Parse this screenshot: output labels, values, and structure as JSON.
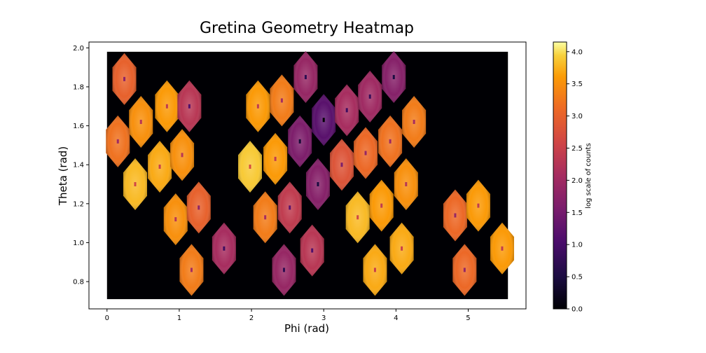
{
  "chart_data": {
    "type": "heatmap",
    "title": "Gretina Geometry Heatmap",
    "xlabel": "Phi (rad)",
    "ylabel": "Theta (rad)",
    "xlim": [
      -0.25,
      5.8
    ],
    "ylim": [
      0.66,
      2.03
    ],
    "xticks": [
      0,
      1,
      2,
      3,
      4,
      5
    ],
    "yticks": [
      0.8,
      1.0,
      1.2,
      1.4,
      1.6,
      1.8,
      2.0
    ],
    "data_extent": {
      "phi": [
        0.0,
        5.55
      ],
      "theta": [
        0.71,
        1.98
      ]
    },
    "background_value": 0.0,
    "colormap": "inferno",
    "colorbar": {
      "label": "log scale of counts",
      "range": [
        0.0,
        4.15
      ],
      "ticks": [
        0.0,
        0.5,
        1.0,
        1.5,
        2.0,
        2.5,
        3.0,
        3.5,
        4.0
      ]
    },
    "grid": false,
    "legend": "none",
    "crystals": [
      {
        "phi": 0.24,
        "theta": 1.84,
        "value": 3.0
      },
      {
        "phi": 0.47,
        "theta": 1.62,
        "value": 3.5
      },
      {
        "phi": 0.15,
        "theta": 1.52,
        "value": 3.2
      },
      {
        "phi": 0.39,
        "theta": 1.3,
        "value": 3.8
      },
      {
        "phi": 0.83,
        "theta": 1.7,
        "value": 3.6
      },
      {
        "phi": 1.14,
        "theta": 1.7,
        "value": 2.3
      },
      {
        "phi": 0.73,
        "theta": 1.39,
        "value": 3.7
      },
      {
        "phi": 1.04,
        "theta": 1.45,
        "value": 3.5
      },
      {
        "phi": 0.95,
        "theta": 1.12,
        "value": 3.5
      },
      {
        "phi": 1.27,
        "theta": 1.18,
        "value": 3.0
      },
      {
        "phi": 1.62,
        "theta": 0.97,
        "value": 2.1
      },
      {
        "phi": 1.17,
        "theta": 0.86,
        "value": 3.3
      },
      {
        "phi": 2.09,
        "theta": 1.7,
        "value": 3.6
      },
      {
        "phi": 2.42,
        "theta": 1.73,
        "value": 3.3
      },
      {
        "phi": 2.75,
        "theta": 1.85,
        "value": 1.9
      },
      {
        "phi": 3.0,
        "theta": 1.63,
        "value": 1.2
      },
      {
        "phi": 2.67,
        "theta": 1.52,
        "value": 1.6
      },
      {
        "phi": 2.33,
        "theta": 1.43,
        "value": 3.6
      },
      {
        "phi": 1.98,
        "theta": 1.39,
        "value": 3.9
      },
      {
        "phi": 2.92,
        "theta": 1.3,
        "value": 1.7
      },
      {
        "phi": 2.53,
        "theta": 1.18,
        "value": 2.4
      },
      {
        "phi": 2.19,
        "theta": 1.13,
        "value": 3.3
      },
      {
        "phi": 2.45,
        "theta": 0.86,
        "value": 1.9
      },
      {
        "phi": 2.84,
        "theta": 0.96,
        "value": 2.3
      },
      {
        "phi": 3.32,
        "theta": 1.68,
        "value": 2.1
      },
      {
        "phi": 3.64,
        "theta": 1.75,
        "value": 2.0
      },
      {
        "phi": 3.97,
        "theta": 1.85,
        "value": 1.7
      },
      {
        "phi": 4.25,
        "theta": 1.62,
        "value": 3.3
      },
      {
        "phi": 3.92,
        "theta": 1.52,
        "value": 3.2
      },
      {
        "phi": 3.58,
        "theta": 1.46,
        "value": 3.1
      },
      {
        "phi": 3.25,
        "theta": 1.4,
        "value": 2.8
      },
      {
        "phi": 4.14,
        "theta": 1.3,
        "value": 3.5
      },
      {
        "phi": 3.8,
        "theta": 1.19,
        "value": 3.6
      },
      {
        "phi": 3.47,
        "theta": 1.13,
        "value": 3.8
      },
      {
        "phi": 4.08,
        "theta": 0.97,
        "value": 3.7
      },
      {
        "phi": 3.71,
        "theta": 0.86,
        "value": 3.7
      },
      {
        "phi": 4.82,
        "theta": 1.14,
        "value": 3.1
      },
      {
        "phi": 5.14,
        "theta": 1.19,
        "value": 3.6
      },
      {
        "phi": 5.47,
        "theta": 0.97,
        "value": 3.6
      },
      {
        "phi": 4.95,
        "theta": 0.86,
        "value": 3.1
      }
    ]
  }
}
